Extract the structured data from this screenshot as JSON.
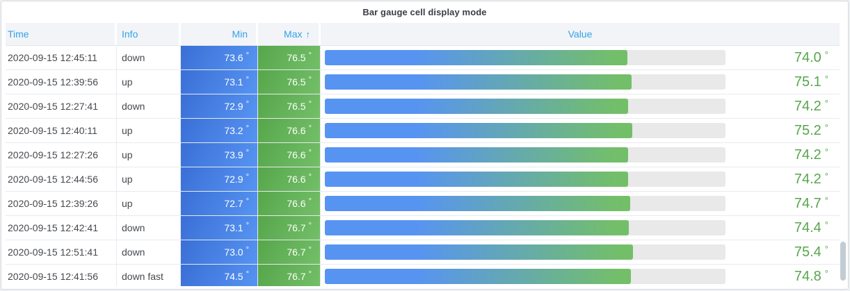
{
  "panel": {
    "title": "Bar gauge cell display mode"
  },
  "table": {
    "unit": "°",
    "columns": [
      {
        "key": "time",
        "label": "Time",
        "align": "left"
      },
      {
        "key": "info",
        "label": "Info",
        "align": "left"
      },
      {
        "key": "min",
        "label": "Min",
        "align": "right"
      },
      {
        "key": "max",
        "label": "Max",
        "align": "right",
        "sorted": "ascending",
        "sort_icon": "↑"
      },
      {
        "key": "value",
        "label": "Value",
        "align": "center"
      }
    ],
    "rows": [
      {
        "time": "2020-09-15 12:45:11",
        "info": "down",
        "min": "73.6",
        "max": "76.5",
        "value": "74.0"
      },
      {
        "time": "2020-09-15 12:39:56",
        "info": "up",
        "min": "73.1",
        "max": "76.5",
        "value": "75.1"
      },
      {
        "time": "2020-09-15 12:27:41",
        "info": "down",
        "min": "72.9",
        "max": "76.5",
        "value": "74.2"
      },
      {
        "time": "2020-09-15 12:40:11",
        "info": "up",
        "min": "73.2",
        "max": "76.6",
        "value": "75.2"
      },
      {
        "time": "2020-09-15 12:27:26",
        "info": "up",
        "min": "73.9",
        "max": "76.6",
        "value": "74.2"
      },
      {
        "time": "2020-09-15 12:44:56",
        "info": "up",
        "min": "72.9",
        "max": "76.6",
        "value": "74.2"
      },
      {
        "time": "2020-09-15 12:39:26",
        "info": "up",
        "min": "72.7",
        "max": "76.6",
        "value": "74.7"
      },
      {
        "time": "2020-09-15 12:42:41",
        "info": "down",
        "min": "73.1",
        "max": "76.7",
        "value": "74.4"
      },
      {
        "time": "2020-09-15 12:51:41",
        "info": "down",
        "min": "73.0",
        "max": "76.7",
        "value": "75.4"
      },
      {
        "time": "2020-09-15 12:41:56",
        "info": "down fast",
        "min": "74.5",
        "max": "76.7",
        "value": "74.8"
      }
    ]
  },
  "colors": {
    "header_text_blue": "#33a2e5",
    "min_cell_blue": "#5794f2",
    "max_cell_green": "#73bf69",
    "value_text_green": "#56a64b",
    "bar_track_gray": "#e9e9e9",
    "panel_border": "#d8d9da"
  }
}
